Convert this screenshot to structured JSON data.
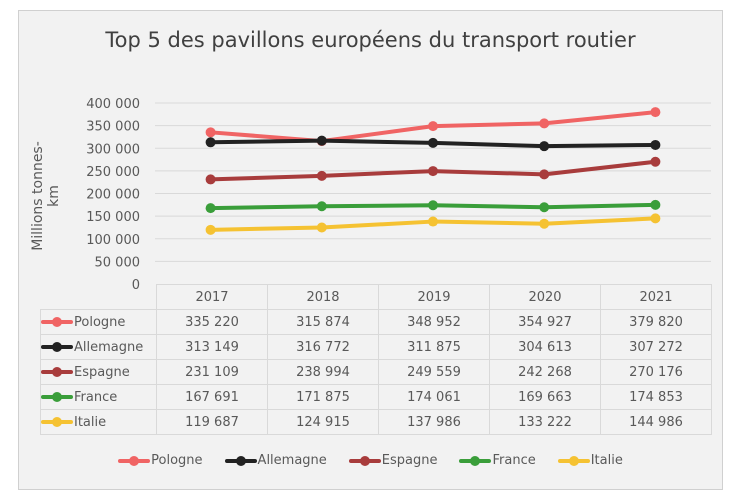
{
  "chart_data": {
    "type": "line",
    "title": "Top 5 des pavillons européens du transport routier",
    "ylabel": "Millions tonnes-km",
    "xlabel": "",
    "categories": [
      "2017",
      "2018",
      "2019",
      "2020",
      "2021"
    ],
    "ylim": [
      0,
      400000
    ],
    "yticks": [
      "400 000",
      "350 000",
      "300 000",
      "250 000",
      "200 000",
      "150 000",
      "100 000",
      "50 000",
      "0"
    ],
    "ytick_values": [
      400000,
      350000,
      300000,
      250000,
      200000,
      150000,
      100000,
      50000,
      0
    ],
    "grid": true,
    "legend_position": "bottom",
    "series": [
      {
        "name": "Pologne",
        "color": "#f06464",
        "values": [
          335220,
          315874,
          348952,
          354927,
          379820
        ],
        "labels": [
          "335 220",
          "315 874",
          "348 952",
          "354 927",
          "379 820"
        ]
      },
      {
        "name": "Allemagne",
        "color": "#222222",
        "values": [
          313149,
          316772,
          311875,
          304613,
          307272
        ],
        "labels": [
          "313 149",
          "316 772",
          "311 875",
          "304 613",
          "307 272"
        ]
      },
      {
        "name": "Espagne",
        "color": "#a83c3c",
        "values": [
          231109,
          238994,
          249559,
          242268,
          270176
        ],
        "labels": [
          "231 109",
          "238 994",
          "249 559",
          "242 268",
          "270 176"
        ]
      },
      {
        "name": "France",
        "color": "#3a9e3a",
        "values": [
          167691,
          171875,
          174061,
          169663,
          174853
        ],
        "labels": [
          "167 691",
          "171 875",
          "174 061",
          "169 663",
          "174 853"
        ]
      },
      {
        "name": "Italie",
        "color": "#f5c232",
        "values": [
          119687,
          124915,
          137986,
          133222,
          144986
        ],
        "labels": [
          "119 687",
          "124 915",
          "137 986",
          "133 222",
          "144 986"
        ]
      }
    ]
  }
}
